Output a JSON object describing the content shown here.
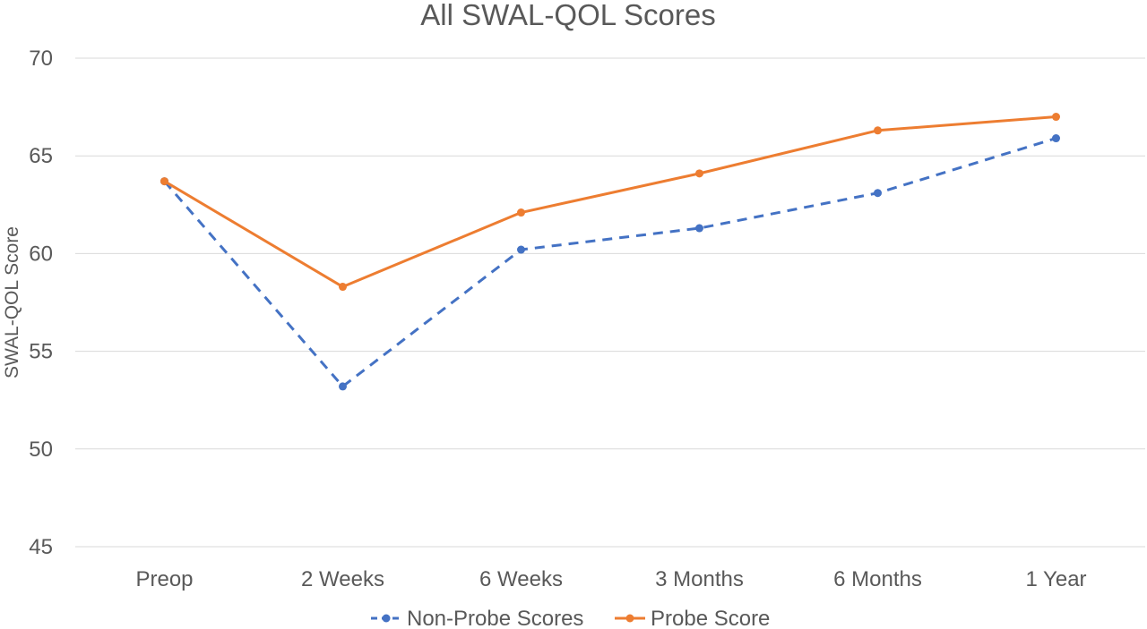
{
  "chart_data": {
    "type": "line",
    "title": "All SWAL-QOL Scores",
    "xlabel": "",
    "ylabel": "SWAL-QOL Score",
    "categories": [
      "Preop",
      "2 Weeks",
      "6 Weeks",
      "3 Months",
      "6 Months",
      "1 Year"
    ],
    "ylim": [
      45,
      70
    ],
    "yticks": [
      45,
      50,
      55,
      60,
      65,
      70
    ],
    "grid": true,
    "legend_position": "bottom",
    "series": [
      {
        "name": "Non-Probe Scores",
        "values": [
          63.7,
          53.2,
          60.2,
          61.3,
          63.1,
          65.9
        ],
        "color": "#4472c4",
        "style": "dashed"
      },
      {
        "name": "Probe Score",
        "values": [
          63.7,
          58.3,
          62.1,
          64.1,
          66.3,
          67.0
        ],
        "color": "#ed7d31",
        "style": "solid"
      }
    ]
  }
}
